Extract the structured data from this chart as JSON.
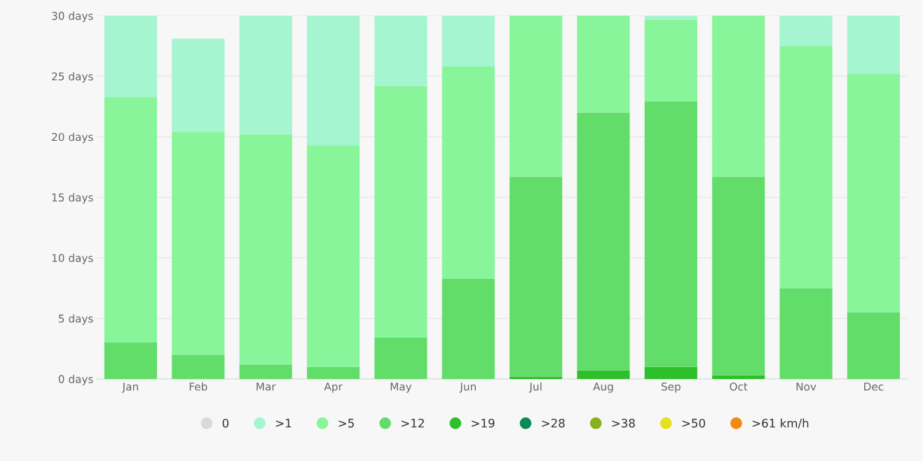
{
  "chart_data": {
    "type": "bar",
    "stacked": true,
    "categories": [
      "Jan",
      "Feb",
      "Mar",
      "Apr",
      "May",
      "Jun",
      "Jul",
      "Aug",
      "Sep",
      "Oct",
      "Nov",
      "Dec"
    ],
    "series": [
      {
        "name": ">61 km/h",
        "color": "#f08a10",
        "values": [
          0,
          0,
          0,
          0,
          0,
          0,
          0,
          0,
          0,
          0,
          0,
          0
        ]
      },
      {
        "name": ">50",
        "color": "#e6e020",
        "values": [
          0,
          0,
          0,
          0,
          0,
          0,
          0,
          0,
          0,
          0,
          0,
          0
        ]
      },
      {
        "name": ">38",
        "color": "#86b01c",
        "values": [
          0,
          0,
          0,
          0,
          0,
          0,
          0,
          0,
          0,
          0,
          0,
          0
        ]
      },
      {
        "name": ">28",
        "color": "#0b8a58",
        "values": [
          0,
          0,
          0,
          0,
          0,
          0,
          0,
          0,
          0,
          0,
          0,
          0
        ]
      },
      {
        "name": ">19",
        "color": "#2ec02a",
        "values": [
          0,
          0,
          0,
          0,
          0,
          0,
          0.2,
          0.7,
          1.0,
          0.3,
          0,
          0
        ]
      },
      {
        "name": ">12",
        "color": "#62dd6a",
        "values": [
          3.0,
          2.0,
          1.2,
          1.0,
          3.4,
          8.3,
          16.5,
          21.3,
          21.9,
          16.4,
          7.5,
          5.5
        ]
      },
      {
        "name": ">5",
        "color": "#88f59a",
        "values": [
          20.3,
          18.4,
          19.0,
          18.3,
          20.8,
          17.5,
          13.3,
          8.0,
          6.8,
          13.3,
          20.0,
          19.7
        ]
      },
      {
        "name": ">1",
        "color": "#a5f5d0",
        "values": [
          6.7,
          7.7,
          9.8,
          10.7,
          5.8,
          4.2,
          0,
          0,
          0.3,
          0,
          2.5,
          4.8
        ]
      },
      {
        "name": "0",
        "color": "#d9d9d9",
        "values": [
          0,
          0,
          0,
          0,
          0,
          0,
          0,
          0,
          0,
          0,
          0,
          0
        ]
      }
    ],
    "ylim": [
      0,
      30
    ],
    "yticks": [
      {
        "value": 0,
        "label": "0 days"
      },
      {
        "value": 5,
        "label": "5 days"
      },
      {
        "value": 10,
        "label": "10 days"
      },
      {
        "value": 15,
        "label": "15 days"
      },
      {
        "value": 20,
        "label": "20 days"
      },
      {
        "value": 25,
        "label": "25 days"
      },
      {
        "value": 30,
        "label": "30 days"
      }
    ],
    "grid": "y",
    "legend": "bottom"
  }
}
